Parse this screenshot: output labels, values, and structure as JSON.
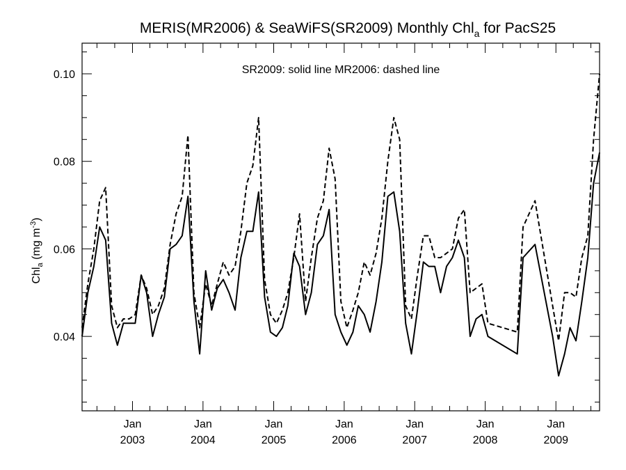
{
  "chart_data": {
    "type": "line",
    "title_main": "MERIS(MR2006) & SeaWiFS(SR2009) Monthly Chl",
    "title_sub": "a",
    "title_tail": " for PacS25",
    "ylabel_main": "Chl",
    "ylabel_sub": "a",
    "ylabel_unit": " (mg m",
    "ylabel_sup": "-3",
    "ylabel_close": ")",
    "annotation": "SR2009: solid line   MR2006: dashed line",
    "xlim": [
      "2002-04-15",
      "2009-08-15"
    ],
    "ylim": [
      0.023,
      0.107
    ],
    "yticks": [
      {
        "value": 0.04,
        "label": "0.04"
      },
      {
        "value": 0.06,
        "label": "0.06"
      },
      {
        "value": 0.08,
        "label": "0.08"
      },
      {
        "value": 0.1,
        "label": "0.10"
      }
    ],
    "xticks": [
      {
        "date": "2003-01-01",
        "month": "Jan",
        "year": "2003"
      },
      {
        "date": "2004-01-01",
        "month": "Jan",
        "year": "2004"
      },
      {
        "date": "2005-01-01",
        "month": "Jan",
        "year": "2005"
      },
      {
        "date": "2006-01-01",
        "month": "Jan",
        "year": "2006"
      },
      {
        "date": "2007-01-01",
        "month": "Jan",
        "year": "2007"
      },
      {
        "date": "2008-01-01",
        "month": "Jan",
        "year": "2008"
      },
      {
        "date": "2009-01-01",
        "month": "Jan",
        "year": "2009"
      }
    ],
    "series": [
      {
        "style": "solid",
        "points": [
          [
            "2002-04-15",
            0.04
          ],
          [
            "2002-05-15",
            0.05
          ],
          [
            "2002-06-15",
            0.056
          ],
          [
            "2002-07-15",
            0.065
          ],
          [
            "2002-08-15",
            0.062
          ],
          [
            "2002-09-15",
            0.043
          ],
          [
            "2002-10-15",
            0.038
          ],
          [
            "2002-11-15",
            0.043
          ],
          [
            "2002-12-15",
            0.043
          ],
          [
            "2003-01-15",
            0.043
          ],
          [
            "2003-02-15",
            0.054
          ],
          [
            "2003-03-15",
            0.05
          ],
          [
            "2003-04-15",
            0.04
          ],
          [
            "2003-05-15",
            0.045
          ],
          [
            "2003-06-15",
            0.049
          ],
          [
            "2003-07-15",
            0.06
          ],
          [
            "2003-08-15",
            0.061
          ],
          [
            "2003-09-15",
            0.063
          ],
          [
            "2003-10-15",
            0.072
          ],
          [
            "2003-11-15",
            0.048
          ],
          [
            "2003-12-15",
            0.036
          ],
          [
            "2004-01-15",
            0.055
          ],
          [
            "2004-02-15",
            0.046
          ],
          [
            "2004-03-15",
            0.051
          ],
          [
            "2004-04-15",
            0.053
          ],
          [
            "2004-05-15",
            0.05
          ],
          [
            "2004-06-15",
            0.046
          ],
          [
            "2004-07-15",
            0.058
          ],
          [
            "2004-08-15",
            0.064
          ],
          [
            "2004-09-15",
            0.064
          ],
          [
            "2004-10-15",
            0.073
          ],
          [
            "2004-11-15",
            0.049
          ],
          [
            "2004-12-15",
            0.041
          ],
          [
            "2005-01-15",
            0.04
          ],
          [
            "2005-02-15",
            0.042
          ],
          [
            "2005-03-15",
            0.047
          ],
          [
            "2005-04-15",
            0.059
          ],
          [
            "2005-05-15",
            0.056
          ],
          [
            "2005-06-15",
            0.045
          ],
          [
            "2005-07-15",
            0.05
          ],
          [
            "2005-08-15",
            0.061
          ],
          [
            "2005-09-15",
            0.063
          ],
          [
            "2005-10-15",
            0.069
          ],
          [
            "2005-11-15",
            0.045
          ],
          [
            "2005-12-15",
            0.041
          ],
          [
            "2006-01-15",
            0.038
          ],
          [
            "2006-02-15",
            0.041
          ],
          [
            "2006-03-15",
            0.047
          ],
          [
            "2006-04-15",
            0.045
          ],
          [
            "2006-05-15",
            0.041
          ],
          [
            "2006-06-15",
            0.048
          ],
          [
            "2006-07-15",
            0.057
          ],
          [
            "2006-08-15",
            0.072
          ],
          [
            "2006-09-15",
            0.073
          ],
          [
            "2006-10-15",
            0.064
          ],
          [
            "2006-11-15",
            0.043
          ],
          [
            "2006-12-15",
            0.036
          ],
          [
            "2007-01-15",
            0.046
          ],
          [
            "2007-02-15",
            0.057
          ],
          [
            "2007-03-15",
            0.056
          ],
          [
            "2007-04-15",
            0.056
          ],
          [
            "2007-05-15",
            0.05
          ],
          [
            "2007-06-15",
            0.056
          ],
          [
            "2007-07-15",
            0.058
          ],
          [
            "2007-08-15",
            0.062
          ],
          [
            "2007-09-15",
            0.058
          ],
          [
            "2007-10-15",
            0.04
          ],
          [
            "2007-11-15",
            0.044
          ],
          [
            "2007-12-15",
            0.045
          ],
          [
            "2008-01-15",
            0.04
          ],
          [
            "2008-06-15",
            0.036
          ],
          [
            "2008-07-15",
            0.058
          ],
          [
            "2008-09-15",
            0.061
          ],
          [
            "2008-12-15",
            0.04
          ],
          [
            "2009-01-15",
            0.031
          ],
          [
            "2009-02-15",
            0.036
          ],
          [
            "2009-03-15",
            0.042
          ],
          [
            "2009-04-15",
            0.039
          ],
          [
            "2009-05-15",
            0.048
          ],
          [
            "2009-06-15",
            0.058
          ],
          [
            "2009-07-15",
            0.075
          ],
          [
            "2009-08-15",
            0.082
          ]
        ]
      },
      {
        "style": "dashed",
        "points": [
          [
            "2002-04-15",
            0.042
          ],
          [
            "2002-05-15",
            0.052
          ],
          [
            "2002-06-15",
            0.06
          ],
          [
            "2002-07-15",
            0.071
          ],
          [
            "2002-08-15",
            0.074
          ],
          [
            "2002-09-15",
            0.047
          ],
          [
            "2002-10-15",
            0.042
          ],
          [
            "2002-11-15",
            0.044
          ],
          [
            "2002-12-15",
            0.044
          ],
          [
            "2003-01-15",
            0.045
          ],
          [
            "2003-02-15",
            0.054
          ],
          [
            "2003-03-15",
            0.051
          ],
          [
            "2003-04-15",
            0.045
          ],
          [
            "2003-05-15",
            0.047
          ],
          [
            "2003-06-15",
            0.051
          ],
          [
            "2003-07-15",
            0.061
          ],
          [
            "2003-08-15",
            0.068
          ],
          [
            "2003-09-15",
            0.072
          ],
          [
            "2003-10-15",
            0.086
          ],
          [
            "2003-11-15",
            0.05
          ],
          [
            "2003-12-15",
            0.042
          ],
          [
            "2004-01-15",
            0.052
          ],
          [
            "2004-02-15",
            0.047
          ],
          [
            "2004-03-15",
            0.052
          ],
          [
            "2004-04-15",
            0.057
          ],
          [
            "2004-05-15",
            0.054
          ],
          [
            "2004-06-15",
            0.056
          ],
          [
            "2004-07-15",
            0.064
          ],
          [
            "2004-08-15",
            0.075
          ],
          [
            "2004-09-15",
            0.079
          ],
          [
            "2004-10-15",
            0.09
          ],
          [
            "2004-11-15",
            0.053
          ],
          [
            "2004-12-15",
            0.045
          ],
          [
            "2005-01-15",
            0.043
          ],
          [
            "2005-02-15",
            0.046
          ],
          [
            "2005-03-15",
            0.05
          ],
          [
            "2005-04-15",
            0.058
          ],
          [
            "2005-05-15",
            0.068
          ],
          [
            "2005-06-15",
            0.048
          ],
          [
            "2005-07-15",
            0.058
          ],
          [
            "2005-08-15",
            0.067
          ],
          [
            "2005-09-15",
            0.071
          ],
          [
            "2005-10-15",
            0.083
          ],
          [
            "2005-11-15",
            0.076
          ],
          [
            "2005-12-15",
            0.048
          ],
          [
            "2006-01-15",
            0.042
          ],
          [
            "2006-02-15",
            0.046
          ],
          [
            "2006-03-15",
            0.05
          ],
          [
            "2006-04-15",
            0.057
          ],
          [
            "2006-05-15",
            0.054
          ],
          [
            "2006-06-15",
            0.059
          ],
          [
            "2006-07-15",
            0.067
          ],
          [
            "2006-08-15",
            0.08
          ],
          [
            "2006-09-15",
            0.09
          ],
          [
            "2006-10-15",
            0.085
          ],
          [
            "2006-11-15",
            0.047
          ],
          [
            "2006-12-15",
            0.044
          ],
          [
            "2007-01-15",
            0.054
          ],
          [
            "2007-02-15",
            0.063
          ],
          [
            "2007-03-15",
            0.063
          ],
          [
            "2007-04-15",
            0.058
          ],
          [
            "2007-05-15",
            0.058
          ],
          [
            "2007-06-15",
            0.059
          ],
          [
            "2007-07-15",
            0.06
          ],
          [
            "2007-08-15",
            0.067
          ],
          [
            "2007-09-15",
            0.069
          ],
          [
            "2007-10-15",
            0.05
          ],
          [
            "2007-11-15",
            0.051
          ],
          [
            "2007-12-15",
            0.052
          ],
          [
            "2008-01-15",
            0.043
          ],
          [
            "2008-06-15",
            0.041
          ],
          [
            "2008-07-15",
            0.065
          ],
          [
            "2008-09-15",
            0.071
          ],
          [
            "2008-12-15",
            0.047
          ],
          [
            "2009-01-15",
            0.039
          ],
          [
            "2009-02-15",
            0.05
          ],
          [
            "2009-03-15",
            0.05
          ],
          [
            "2009-04-15",
            0.049
          ],
          [
            "2009-05-15",
            0.058
          ],
          [
            "2009-06-15",
            0.063
          ],
          [
            "2009-07-15",
            0.085
          ],
          [
            "2009-08-15",
            0.1
          ]
        ]
      }
    ]
  }
}
